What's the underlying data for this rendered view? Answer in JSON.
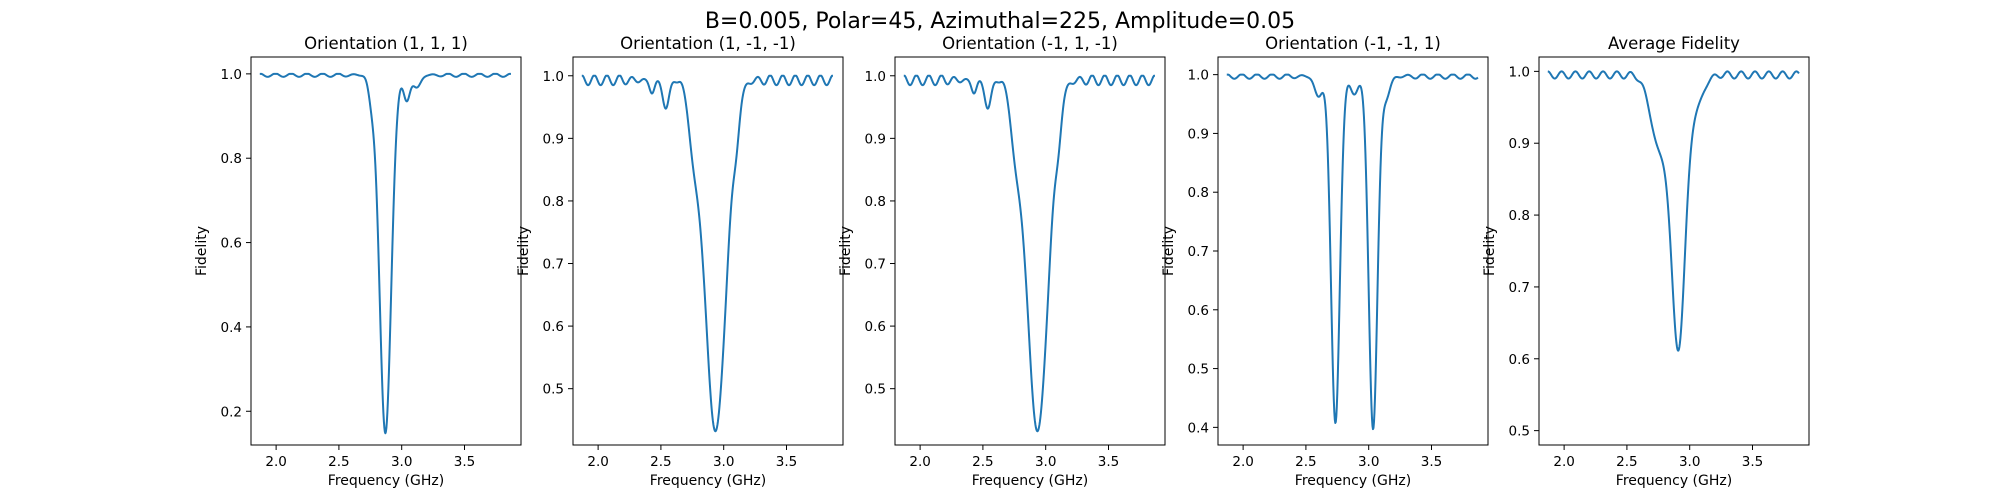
{
  "figure": {
    "suptitle": "B=0.005, Polar=45, Azimuthal=225, Amplitude=0.05"
  },
  "colors": {
    "line": "#1f77b4",
    "axes": "#000000",
    "background": "#ffffff"
  },
  "chart_data": [
    {
      "type": "line",
      "title": "Orientation (1, 1, 1)",
      "xlabel": "Frequency (GHz)",
      "ylabel": "Fidelity",
      "xlim": [
        1.8,
        3.95
      ],
      "ylim": [
        0.12,
        1.04
      ],
      "xticks": [
        2.0,
        2.5,
        3.0,
        3.5
      ],
      "yticks": [
        0.2,
        0.4,
        0.6,
        0.8,
        1.0
      ],
      "ytick_decimals": 1,
      "grid": false,
      "legend": "none",
      "x_range": [
        1.87,
        3.87
      ],
      "baseline": 0.997,
      "ripple": 0.004,
      "ripple_period": 0.125,
      "dips": [
        {
          "center": 2.87,
          "depth": 0.85,
          "width": 0.046
        },
        {
          "center": 2.76,
          "depth": 0.05,
          "width": 0.025
        },
        {
          "center": 3.04,
          "depth": 0.06,
          "width": 0.025
        },
        {
          "center": 3.12,
          "depth": 0.03,
          "width": 0.03
        }
      ]
    },
    {
      "type": "line",
      "title": "Orientation (1, -1, -1)",
      "xlabel": "Frequency (GHz)",
      "ylabel": "Fidelity",
      "xlim": [
        1.8,
        3.95
      ],
      "ylim": [
        0.41,
        1.03
      ],
      "xticks": [
        2.0,
        2.5,
        3.0,
        3.5
      ],
      "yticks": [
        0.5,
        0.6,
        0.7,
        0.8,
        0.9,
        1.0
      ],
      "ytick_decimals": 1,
      "grid": false,
      "legend": "none",
      "x_range": [
        1.87,
        3.87
      ],
      "baseline": 0.993,
      "ripple": 0.008,
      "ripple_period": 0.1,
      "dips": [
        {
          "center": 2.935,
          "depth": 0.56,
          "width": 0.085
        },
        {
          "center": 2.76,
          "depth": 0.08,
          "width": 0.04
        },
        {
          "center": 2.54,
          "depth": 0.045,
          "width": 0.025
        },
        {
          "center": 2.43,
          "depth": 0.02,
          "width": 0.02
        },
        {
          "center": 3.1,
          "depth": 0.04,
          "width": 0.025
        }
      ]
    },
    {
      "type": "line",
      "title": "Orientation (-1, 1, -1)",
      "xlabel": "Frequency (GHz)",
      "ylabel": "Fidelity",
      "xlim": [
        1.8,
        3.95
      ],
      "ylim": [
        0.41,
        1.03
      ],
      "xticks": [
        2.0,
        2.5,
        3.0,
        3.5
      ],
      "yticks": [
        0.5,
        0.6,
        0.7,
        0.8,
        0.9,
        1.0
      ],
      "ytick_decimals": 1,
      "grid": false,
      "legend": "none",
      "x_range": [
        1.87,
        3.87
      ],
      "baseline": 0.993,
      "ripple": 0.008,
      "ripple_period": 0.1,
      "dips": [
        {
          "center": 2.935,
          "depth": 0.56,
          "width": 0.085
        },
        {
          "center": 2.76,
          "depth": 0.08,
          "width": 0.04
        },
        {
          "center": 2.54,
          "depth": 0.045,
          "width": 0.025
        },
        {
          "center": 2.43,
          "depth": 0.02,
          "width": 0.02
        },
        {
          "center": 3.1,
          "depth": 0.04,
          "width": 0.025
        }
      ]
    },
    {
      "type": "line",
      "title": "Orientation (-1, -1, 1)",
      "xlabel": "Frequency (GHz)",
      "ylabel": "Fidelity",
      "xlim": [
        1.8,
        3.95
      ],
      "ylim": [
        0.37,
        1.03
      ],
      "xticks": [
        2.0,
        2.5,
        3.0,
        3.5
      ],
      "yticks": [
        0.4,
        0.5,
        0.6,
        0.7,
        0.8,
        0.9,
        1.0
      ],
      "ytick_decimals": 1,
      "grid": false,
      "legend": "none",
      "x_range": [
        1.87,
        3.87
      ],
      "baseline": 0.997,
      "ripple": 0.004,
      "ripple_period": 0.12,
      "dips": [
        {
          "center": 2.735,
          "depth": 0.59,
          "width": 0.035
        },
        {
          "center": 3.035,
          "depth": 0.6,
          "width": 0.035
        },
        {
          "center": 2.885,
          "depth": 0.03,
          "width": 0.03
        },
        {
          "center": 2.6,
          "depth": 0.035,
          "width": 0.03
        },
        {
          "center": 3.14,
          "depth": 0.035,
          "width": 0.03
        }
      ]
    },
    {
      "type": "line",
      "title": "Average Fidelity",
      "xlabel": "Frequency (GHz)",
      "ylabel": "Fidelity",
      "xlim": [
        1.8,
        3.95
      ],
      "ylim": [
        0.48,
        1.02
      ],
      "xticks": [
        2.0,
        2.5,
        3.0,
        3.5
      ],
      "yticks": [
        0.5,
        0.6,
        0.7,
        0.8,
        0.9,
        1.0
      ],
      "ytick_decimals": 1,
      "grid": false,
      "legend": "none",
      "x_range": [
        1.87,
        3.87
      ],
      "baseline": 0.995,
      "ripple": 0.005,
      "ripple_period": 0.11,
      "dips": [
        {
          "center": 2.91,
          "depth": 0.37,
          "width": 0.055
        },
        {
          "center": 2.76,
          "depth": 0.1,
          "width": 0.07
        },
        {
          "center": 3.05,
          "depth": 0.04,
          "width": 0.06
        }
      ]
    }
  ]
}
